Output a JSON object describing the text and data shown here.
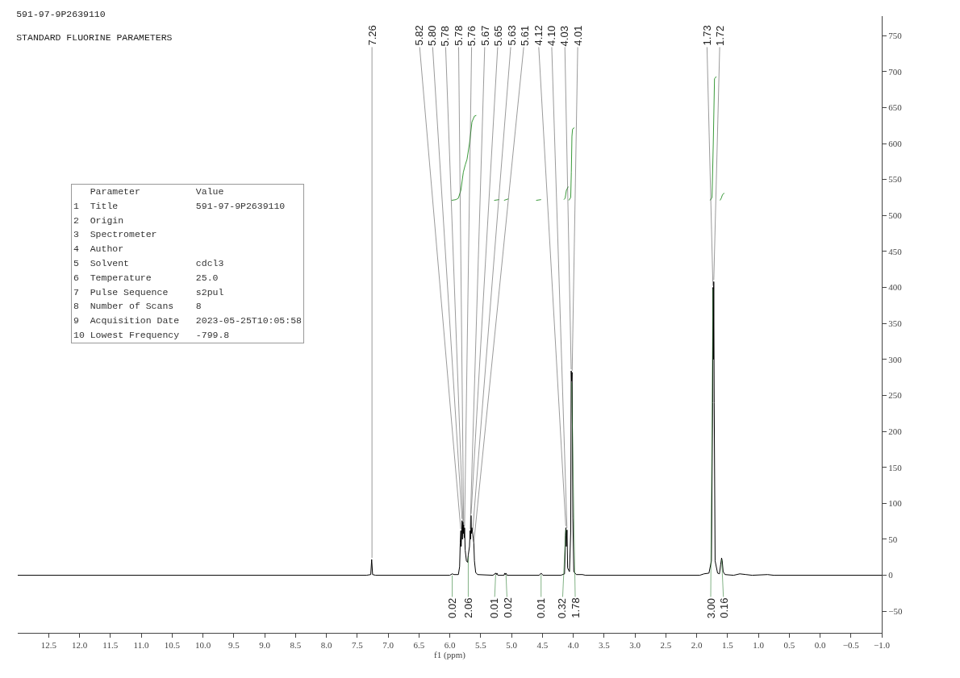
{
  "chart_data": {
    "type": "line",
    "title": "591-97-9P2639110",
    "subtitle": "STANDARD FLUORINE PARAMETERS",
    "xlabel": "f1 (ppm)",
    "xlim": [
      13,
      -1
    ],
    "ylim": [
      -80,
      777
    ],
    "xticks": [
      12.5,
      {
        "value": 12,
        "label": "12.0"
      },
      11.5,
      {
        "value": 11,
        "label": "11.0"
      },
      10.5,
      {
        "value": 10,
        "label": "10.0"
      },
      9.5,
      {
        "value": 9,
        "label": "9.0"
      },
      8.5,
      {
        "value": 8,
        "label": "8.0"
      },
      7.5,
      {
        "value": 7,
        "label": "7.0"
      },
      6.5,
      {
        "value": 6,
        "label": "6.0"
      },
      5.5,
      {
        "value": 5,
        "label": "5.0"
      },
      4.5,
      {
        "value": 4,
        "label": "4.0"
      },
      3.5,
      {
        "value": 3,
        "label": "3.0"
      },
      2.5,
      {
        "value": 2,
        "label": "2.0"
      },
      1.5,
      {
        "value": 1,
        "label": "1.0"
      },
      0.5,
      {
        "value": 0,
        "label": "0.0"
      },
      {
        "value": -0.5,
        "label": "−0.5"
      },
      {
        "value": -1,
        "label": "−1.0"
      }
    ],
    "yticks": [
      {
        "value": -50,
        "label": "−50"
      },
      0,
      50,
      100,
      150,
      200,
      250,
      300,
      350,
      400,
      450,
      500,
      550,
      600,
      650,
      700,
      750
    ],
    "grid": false,
    "marker": "none",
    "line_style": "solid",
    "series": [
      {
        "color": "#000000",
        "x": [
          13,
          7.35,
          7.28,
          7.265,
          7.25,
          7.2,
          6.0,
          5.96,
          5.93,
          5.86,
          5.84,
          5.83,
          5.82,
          5.815,
          5.8,
          5.795,
          5.785,
          5.78,
          5.775,
          5.765,
          5.76,
          5.75,
          5.73,
          5.71,
          5.7,
          5.68,
          5.67,
          5.66,
          5.655,
          5.65,
          5.64,
          5.63,
          5.62,
          5.61,
          5.6,
          5.58,
          5.55,
          5.3,
          5.255,
          5.245,
          5.235,
          5.22,
          5.12,
          5.11,
          5.1,
          5.09,
          5.07,
          4.55,
          4.52,
          4.49,
          4.2,
          4.14,
          4.125,
          4.118,
          4.11,
          4.1,
          4.09,
          4.06,
          4.04,
          4.032,
          4.025,
          4.017,
          4.005,
          3.99,
          3.95,
          3.85,
          3.8,
          1.95,
          1.88,
          1.8,
          1.76,
          1.74,
          1.735,
          1.728,
          1.722,
          1.715,
          1.7,
          1.66,
          1.63,
          1.61,
          1.595,
          1.585,
          1.57,
          1.54,
          1.4,
          1.3,
          1.2,
          1.1,
          0.85,
          0.75,
          -1
        ],
        "values": [
          0,
          0,
          1,
          22,
          1,
          0,
          0,
          2,
          1,
          1,
          12,
          45,
          62,
          40,
          76,
          50,
          74,
          58,
          70,
          52,
          66,
          35,
          20,
          18,
          28,
          40,
          62,
          50,
          83,
          58,
          66,
          60,
          52,
          45,
          20,
          4,
          1,
          0,
          3,
          1,
          3,
          0,
          0,
          3,
          1,
          3,
          0,
          0,
          3,
          0,
          0,
          2,
          55,
          66,
          40,
          63,
          10,
          5,
          60,
          284,
          270,
          282,
          80,
          5,
          1,
          1,
          0,
          0,
          2,
          3,
          20,
          240,
          400,
          300,
          408,
          240,
          20,
          3,
          2,
          15,
          24,
          20,
          5,
          1,
          0,
          2,
          1,
          0,
          1,
          0,
          0
        ]
      },
      {
        "color": "#3a9a3a",
        "x": [
          5.97,
          5.9,
          5.86,
          5.82,
          5.78,
          5.75,
          5.72,
          5.68,
          5.64,
          5.6,
          5.57
        ],
        "values": [
          521,
          522,
          524,
          535,
          560,
          570,
          578,
          600,
          630,
          638,
          639
        ]
      },
      {
        "color": "#3a9a3a",
        "x": [
          5.28,
          5.2
        ],
        "values": [
          521,
          522
        ]
      },
      {
        "color": "#3a9a3a",
        "x": [
          5.12,
          5.05
        ],
        "values": [
          521,
          523
        ]
      },
      {
        "color": "#3a9a3a",
        "x": [
          4.6,
          4.52
        ],
        "values": [
          521,
          522
        ]
      },
      {
        "color": "#3a9a3a",
        "x": [
          4.15,
          4.13,
          4.11,
          4.08
        ],
        "values": [
          522,
          524,
          535,
          540
        ]
      },
      {
        "color": "#3a9a3a",
        "x": [
          4.07,
          4.04,
          4.03,
          4.02,
          4.01,
          3.98
        ],
        "values": [
          521,
          525,
          560,
          610,
          620,
          622
        ]
      },
      {
        "color": "#3a9a3a",
        "x": [
          1.78,
          1.75,
          1.73,
          1.71,
          1.68
        ],
        "values": [
          521,
          525,
          600,
          690,
          693
        ]
      },
      {
        "color": "#3a9a3a",
        "x": [
          1.62,
          1.6,
          1.58,
          1.55
        ],
        "values": [
          521,
          524,
          529,
          531
        ]
      }
    ],
    "annotations": [
      {
        "text": "7.26",
        "x": 7.26,
        "y": 22
      },
      {
        "text": "5.82",
        "x": 5.82,
        "y": 62
      },
      {
        "text": "5.80",
        "x": 5.8,
        "y": 76
      },
      {
        "text": "5.78",
        "x": 5.785,
        "y": 74
      },
      {
        "text": "5.78",
        "x": 5.775,
        "y": 70
      },
      {
        "text": "5.76",
        "x": 5.76,
        "y": 66
      },
      {
        "text": "5.67",
        "x": 5.67,
        "y": 62
      },
      {
        "text": "5.65",
        "x": 5.655,
        "y": 83
      },
      {
        "text": "5.63",
        "x": 5.63,
        "y": 60
      },
      {
        "text": "5.61",
        "x": 5.61,
        "y": 45
      },
      {
        "text": "4.12",
        "x": 4.118,
        "y": 66
      },
      {
        "text": "4.10",
        "x": 4.1,
        "y": 63
      },
      {
        "text": "4.03",
        "x": 4.032,
        "y": 284
      },
      {
        "text": "4.01",
        "x": 4.017,
        "y": 282
      },
      {
        "text": "1.73",
        "x": 1.735,
        "y": 400
      },
      {
        "text": "1.72",
        "x": 1.722,
        "y": 408
      },
      {
        "text": "0.02",
        "x": 5.96,
        "y": 2
      },
      {
        "text": "2.06",
        "x": 5.7,
        "y": 28
      },
      {
        "text": "0.01",
        "x": 5.255,
        "y": 3
      },
      {
        "text": "0.02",
        "x": 5.09,
        "y": 3
      },
      {
        "text": "0.01",
        "x": 4.52,
        "y": 3
      },
      {
        "text": "0.32",
        "x": 4.118,
        "y": 66
      },
      {
        "text": "1.78",
        "x": 4.025,
        "y": 270
      },
      {
        "text": "3.00",
        "x": 1.735,
        "y": 400
      },
      {
        "text": "0.16",
        "x": 1.595,
        "y": 24
      },
      "   Parameter          Value",
      "1  Title              591-97-9P2639110",
      "2  Origin",
      "3  Spectrometer",
      "4  Author",
      "5  Solvent            cdcl3",
      "6  Temperature        25.0",
      "7  Pulse Sequence     s2pul",
      "8  Number of Scans    8",
      "9  Acquisition Date   2023-05-25T10:05:58",
      "10 Lowest Frequency   -799.8"
    ]
  }
}
